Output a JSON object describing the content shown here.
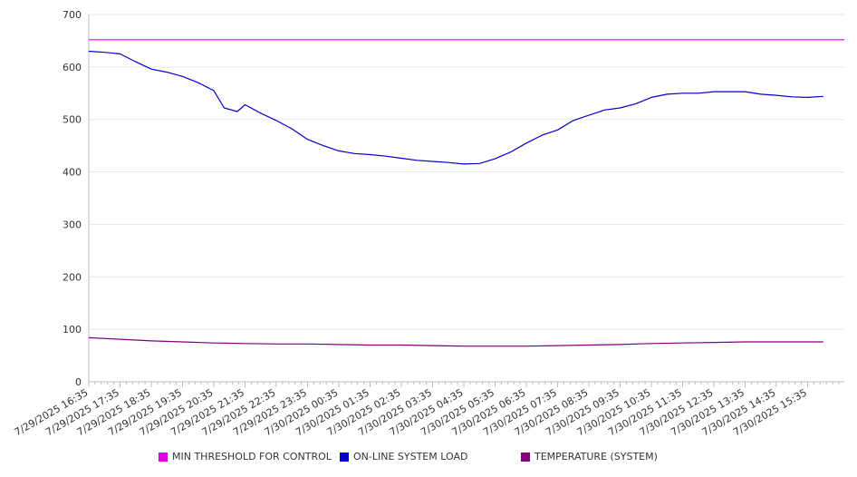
{
  "chart_data": {
    "type": "line",
    "title": "",
    "xlabel": "",
    "ylabel": "",
    "ylim": [
      0,
      700
    ],
    "y_ticks": [
      0,
      100,
      200,
      300,
      400,
      500,
      600,
      700
    ],
    "x_tick_labels": [
      "7/29/2025 16:35",
      "7/29/2025 17:35",
      "7/29/2025 18:35",
      "7/29/2025 19:35",
      "7/29/2025 20:35",
      "7/29/2025 21:35",
      "7/29/2025 22:35",
      "7/29/2025 23:35",
      "7/30/2025 00:35",
      "7/30/2025 01:35",
      "7/30/2025 02:35",
      "7/30/2025 03:35",
      "7/30/2025 04:35",
      "7/30/2025 05:35",
      "7/30/2025 06:35",
      "7/30/2025 07:35",
      "7/30/2025 08:35",
      "7/30/2025 09:35",
      "7/30/2025 10:35",
      "7/30/2025 11:35",
      "7/30/2025 12:35",
      "7/30/2025 13:35",
      "7/30/2025 14:35",
      "7/30/2025 15:35"
    ],
    "grid": true,
    "legend_position": "bottom",
    "series": [
      {
        "name": "MIN THRESHOLD FOR CONTROL",
        "color": "#e000e0",
        "x": [
          "7/29/2025 16:35",
          "7/30/2025 16:35"
        ],
        "values": [
          652,
          652
        ]
      },
      {
        "name": "ON-LINE SYSTEM LOAD",
        "color": "#0000cc",
        "x": [
          "7/29/2025 16:35",
          "7/29/2025 17:05",
          "7/29/2025 17:35",
          "7/29/2025 18:05",
          "7/29/2025 18:35",
          "7/29/2025 19:05",
          "7/29/2025 19:35",
          "7/29/2025 20:05",
          "7/29/2025 20:35",
          "7/29/2025 20:55",
          "7/29/2025 21:20",
          "7/29/2025 21:35",
          "7/29/2025 22:05",
          "7/29/2025 22:35",
          "7/29/2025 23:05",
          "7/29/2025 23:35",
          "7/30/2025 00:05",
          "7/30/2025 00:35",
          "7/30/2025 01:05",
          "7/30/2025 01:35",
          "7/30/2025 02:05",
          "7/30/2025 02:35",
          "7/30/2025 03:05",
          "7/30/2025 03:35",
          "7/30/2025 04:05",
          "7/30/2025 04:35",
          "7/30/2025 05:05",
          "7/30/2025 05:35",
          "7/30/2025 06:05",
          "7/30/2025 06:35",
          "7/30/2025 07:05",
          "7/30/2025 07:35",
          "7/30/2025 08:05",
          "7/30/2025 08:35",
          "7/30/2025 09:05",
          "7/30/2025 09:35",
          "7/30/2025 10:05",
          "7/30/2025 10:35",
          "7/30/2025 11:05",
          "7/30/2025 11:35",
          "7/30/2025 12:05",
          "7/30/2025 12:35",
          "7/30/2025 13:05",
          "7/30/2025 13:35",
          "7/30/2025 14:05",
          "7/30/2025 14:35",
          "7/30/2025 15:05",
          "7/30/2025 15:35",
          "7/30/2025 16:05"
        ],
        "values": [
          630,
          628,
          625,
          610,
          596,
          590,
          582,
          570,
          555,
          522,
          515,
          528,
          512,
          498,
          482,
          462,
          450,
          440,
          435,
          433,
          430,
          426,
          422,
          420,
          418,
          415,
          416,
          425,
          438,
          455,
          470,
          480,
          498,
          508,
          518,
          522,
          530,
          542,
          548,
          550,
          550,
          553,
          553,
          553,
          548,
          546,
          543,
          542,
          544
        ]
      },
      {
        "name": "TEMPERATURE (SYSTEM)",
        "color": "#800080",
        "x": [
          "7/29/2025 16:35",
          "7/29/2025 17:35",
          "7/29/2025 18:35",
          "7/29/2025 19:35",
          "7/29/2025 20:35",
          "7/29/2025 21:35",
          "7/29/2025 22:35",
          "7/29/2025 23:35",
          "7/30/2025 00:35",
          "7/30/2025 01:35",
          "7/30/2025 02:35",
          "7/30/2025 03:35",
          "7/30/2025 04:35",
          "7/30/2025 05:35",
          "7/30/2025 06:35",
          "7/30/2025 07:35",
          "7/30/2025 08:35",
          "7/30/2025 09:35",
          "7/30/2025 10:35",
          "7/30/2025 11:35",
          "7/30/2025 12:35",
          "7/30/2025 13:35",
          "7/30/2025 14:35",
          "7/30/2025 15:35",
          "7/30/2025 16:05"
        ],
        "values": [
          84,
          81,
          78,
          76,
          74,
          73,
          72,
          72,
          71,
          70,
          70,
          69,
          68,
          68,
          68,
          69,
          70,
          71,
          73,
          74,
          75,
          76,
          76,
          76,
          76
        ]
      }
    ]
  }
}
